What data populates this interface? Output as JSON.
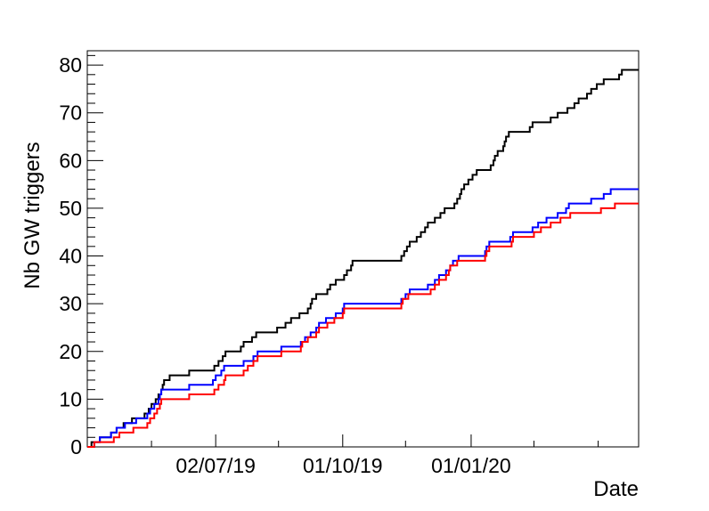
{
  "chart_data": {
    "type": "line",
    "title": "",
    "xlabel": "Date",
    "ylabel": "Nb GW triggers",
    "x_range": [
      "2019-04-01",
      "2020-04-30"
    ],
    "ylim": [
      0,
      83
    ],
    "y_ticks": [
      0,
      10,
      20,
      30,
      40,
      50,
      60,
      70,
      80
    ],
    "x_ticks": [
      {
        "date": "2019-07-02",
        "label": "02/07/19"
      },
      {
        "date": "2019-10-01",
        "label": "01/10/19"
      },
      {
        "date": "2020-01-01",
        "label": "01/01/20"
      }
    ],
    "x_minor_ticks": [
      "2019-05-17",
      "2019-08-16",
      "2019-11-15",
      "2020-02-15",
      "2020-04-01"
    ],
    "grid": false,
    "legend": "none",
    "step_style": "post",
    "series": [
      {
        "color": "#000000",
        "points": [
          [
            "2019-04-01",
            0
          ],
          [
            "2019-04-04",
            1
          ],
          [
            "2019-04-10",
            2
          ],
          [
            "2019-04-18",
            3
          ],
          [
            "2019-04-22",
            4
          ],
          [
            "2019-04-27",
            5
          ],
          [
            "2019-05-03",
            6
          ],
          [
            "2019-05-12",
            7
          ],
          [
            "2019-05-15",
            8
          ],
          [
            "2019-05-17",
            9
          ],
          [
            "2019-05-20",
            10
          ],
          [
            "2019-05-22",
            11
          ],
          [
            "2019-05-24",
            12
          ],
          [
            "2019-05-25",
            13
          ],
          [
            "2019-05-26",
            14
          ],
          [
            "2019-05-30",
            15
          ],
          [
            "2019-06-13",
            16
          ],
          [
            "2019-07-01",
            17
          ],
          [
            "2019-07-04",
            18
          ],
          [
            "2019-07-07",
            19
          ],
          [
            "2019-07-09",
            20
          ],
          [
            "2019-07-20",
            21
          ],
          [
            "2019-07-22",
            22
          ],
          [
            "2019-07-28",
            23
          ],
          [
            "2019-07-31",
            24
          ],
          [
            "2019-08-15",
            25
          ],
          [
            "2019-08-21",
            26
          ],
          [
            "2019-08-25",
            27
          ],
          [
            "2019-08-31",
            28
          ],
          [
            "2019-09-06",
            29
          ],
          [
            "2019-09-08",
            30
          ],
          [
            "2019-09-09",
            31
          ],
          [
            "2019-09-12",
            32
          ],
          [
            "2019-09-20",
            33
          ],
          [
            "2019-09-22",
            34
          ],
          [
            "2019-09-26",
            35
          ],
          [
            "2019-10-02",
            36
          ],
          [
            "2019-10-04",
            37
          ],
          [
            "2019-10-07",
            38
          ],
          [
            "2019-10-08",
            39
          ],
          [
            "2019-11-12",
            40
          ],
          [
            "2019-11-14",
            41
          ],
          [
            "2019-11-16",
            42
          ],
          [
            "2019-11-18",
            43
          ],
          [
            "2019-11-23",
            44
          ],
          [
            "2019-11-26",
            45
          ],
          [
            "2019-11-29",
            46
          ],
          [
            "2019-12-01",
            47
          ],
          [
            "2019-12-06",
            48
          ],
          [
            "2019-12-10",
            49
          ],
          [
            "2019-12-13",
            50
          ],
          [
            "2019-12-20",
            51
          ],
          [
            "2019-12-22",
            52
          ],
          [
            "2019-12-24",
            53
          ],
          [
            "2019-12-25",
            54
          ],
          [
            "2019-12-27",
            55
          ],
          [
            "2019-12-30",
            56
          ],
          [
            "2020-01-02",
            57
          ],
          [
            "2020-01-05",
            58
          ],
          [
            "2020-01-15",
            59
          ],
          [
            "2020-01-17",
            60
          ],
          [
            "2020-01-18",
            61
          ],
          [
            "2020-01-20",
            62
          ],
          [
            "2020-01-24",
            63
          ],
          [
            "2020-01-25",
            64
          ],
          [
            "2020-01-26",
            65
          ],
          [
            "2020-01-28",
            66
          ],
          [
            "2020-02-12",
            67
          ],
          [
            "2020-02-14",
            68
          ],
          [
            "2020-02-27",
            69
          ],
          [
            "2020-03-03",
            70
          ],
          [
            "2020-03-10",
            71
          ],
          [
            "2020-03-15",
            72
          ],
          [
            "2020-03-18",
            73
          ],
          [
            "2020-03-24",
            74
          ],
          [
            "2020-03-27",
            75
          ],
          [
            "2020-03-31",
            76
          ],
          [
            "2020-04-05",
            77
          ],
          [
            "2020-04-16",
            78
          ],
          [
            "2020-04-18",
            79
          ],
          [
            "2020-04-30",
            79
          ]
        ]
      },
      {
        "color": "#0000ff",
        "points": [
          [
            "2019-04-01",
            0
          ],
          [
            "2019-04-06",
            1
          ],
          [
            "2019-04-10",
            2
          ],
          [
            "2019-04-18",
            3
          ],
          [
            "2019-04-22",
            4
          ],
          [
            "2019-04-28",
            5
          ],
          [
            "2019-05-06",
            6
          ],
          [
            "2019-05-14",
            7
          ],
          [
            "2019-05-16",
            8
          ],
          [
            "2019-05-19",
            9
          ],
          [
            "2019-05-22",
            10
          ],
          [
            "2019-05-23",
            11
          ],
          [
            "2019-05-24",
            12
          ],
          [
            "2019-06-13",
            13
          ],
          [
            "2019-06-30",
            14
          ],
          [
            "2019-07-02",
            15
          ],
          [
            "2019-07-06",
            16
          ],
          [
            "2019-07-08",
            17
          ],
          [
            "2019-07-22",
            18
          ],
          [
            "2019-07-29",
            19
          ],
          [
            "2019-08-01",
            20
          ],
          [
            "2019-08-18",
            21
          ],
          [
            "2019-09-01",
            22
          ],
          [
            "2019-09-04",
            23
          ],
          [
            "2019-09-08",
            24
          ],
          [
            "2019-09-12",
            25
          ],
          [
            "2019-09-14",
            26
          ],
          [
            "2019-09-19",
            27
          ],
          [
            "2019-09-26",
            28
          ],
          [
            "2019-10-01",
            29
          ],
          [
            "2019-10-02",
            30
          ],
          [
            "2019-11-12",
            31
          ],
          [
            "2019-11-15",
            32
          ],
          [
            "2019-11-18",
            33
          ],
          [
            "2019-12-01",
            34
          ],
          [
            "2019-12-06",
            35
          ],
          [
            "2019-12-09",
            36
          ],
          [
            "2019-12-14",
            37
          ],
          [
            "2019-12-17",
            38
          ],
          [
            "2019-12-19",
            39
          ],
          [
            "2019-12-23",
            40
          ],
          [
            "2020-01-11",
            41
          ],
          [
            "2020-01-12",
            42
          ],
          [
            "2020-01-14",
            43
          ],
          [
            "2020-01-29",
            44
          ],
          [
            "2020-01-31",
            45
          ],
          [
            "2020-02-14",
            46
          ],
          [
            "2020-02-18",
            47
          ],
          [
            "2020-02-24",
            48
          ],
          [
            "2020-03-03",
            49
          ],
          [
            "2020-03-09",
            50
          ],
          [
            "2020-03-11",
            51
          ],
          [
            "2020-03-27",
            52
          ],
          [
            "2020-04-05",
            53
          ],
          [
            "2020-04-10",
            54
          ],
          [
            "2020-04-30",
            54
          ]
        ]
      },
      {
        "color": "#ff0000",
        "points": [
          [
            "2019-04-01",
            0
          ],
          [
            "2019-04-06",
            1
          ],
          [
            "2019-04-20",
            2
          ],
          [
            "2019-04-24",
            3
          ],
          [
            "2019-05-04",
            4
          ],
          [
            "2019-05-14",
            5
          ],
          [
            "2019-05-16",
            6
          ],
          [
            "2019-05-19",
            7
          ],
          [
            "2019-05-21",
            8
          ],
          [
            "2019-05-23",
            9
          ],
          [
            "2019-05-24",
            10
          ],
          [
            "2019-06-13",
            11
          ],
          [
            "2019-07-01",
            12
          ],
          [
            "2019-07-04",
            13
          ],
          [
            "2019-07-08",
            14
          ],
          [
            "2019-07-09",
            15
          ],
          [
            "2019-07-22",
            16
          ],
          [
            "2019-07-25",
            17
          ],
          [
            "2019-07-29",
            18
          ],
          [
            "2019-08-01",
            19
          ],
          [
            "2019-08-18",
            20
          ],
          [
            "2019-09-01",
            21
          ],
          [
            "2019-09-02",
            22
          ],
          [
            "2019-09-06",
            23
          ],
          [
            "2019-09-12",
            24
          ],
          [
            "2019-09-14",
            25
          ],
          [
            "2019-09-20",
            26
          ],
          [
            "2019-09-25",
            27
          ],
          [
            "2019-10-01",
            28
          ],
          [
            "2019-10-02",
            29
          ],
          [
            "2019-11-12",
            30
          ],
          [
            "2019-11-13",
            31
          ],
          [
            "2019-11-17",
            32
          ],
          [
            "2019-12-03",
            33
          ],
          [
            "2019-12-06",
            34
          ],
          [
            "2019-12-09",
            35
          ],
          [
            "2019-12-14",
            36
          ],
          [
            "2019-12-16",
            37
          ],
          [
            "2019-12-17",
            38
          ],
          [
            "2019-12-22",
            39
          ],
          [
            "2020-01-11",
            40
          ],
          [
            "2020-01-12",
            41
          ],
          [
            "2020-01-14",
            42
          ],
          [
            "2020-01-30",
            43
          ],
          [
            "2020-01-31",
            44
          ],
          [
            "2020-02-15",
            45
          ],
          [
            "2020-02-20",
            46
          ],
          [
            "2020-02-27",
            47
          ],
          [
            "2020-03-05",
            48
          ],
          [
            "2020-03-12",
            49
          ],
          [
            "2020-04-03",
            50
          ],
          [
            "2020-04-13",
            51
          ],
          [
            "2020-04-30",
            51
          ]
        ]
      }
    ]
  }
}
